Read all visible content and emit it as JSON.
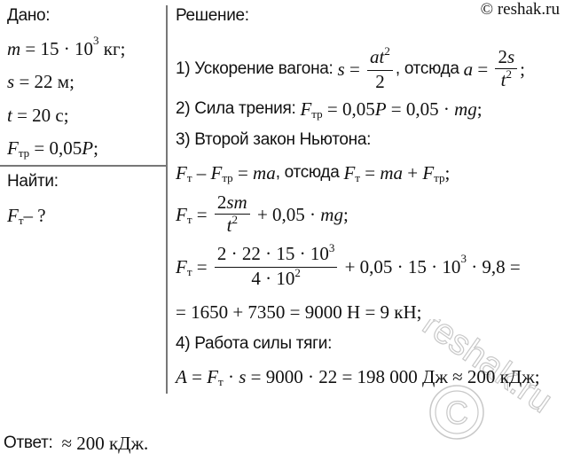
{
  "copyright": "© reshak.ru",
  "watermark": "reshak.ru",
  "given": {
    "title": "Дано:",
    "lines": [
      [
        {
          "v": "m"
        },
        " = 15 · 10",
        {
          "sup": "3"
        },
        " кг;"
      ],
      [
        {
          "v": "s"
        },
        " = 22 м;"
      ],
      [
        {
          "v": "t"
        },
        " = 20 с;"
      ],
      [
        {
          "v": "F"
        },
        {
          "sub": "тр"
        },
        " = 0,05",
        {
          "v": "P"
        },
        ";"
      ]
    ]
  },
  "find": {
    "title": "Найти:",
    "line": [
      {
        "v": "F"
      },
      {
        "sub": "т"
      },
      "– ?"
    ]
  },
  "solution": {
    "title": "Решение:",
    "lines": [
      [
        {
          "t": "1) Ускорение вагона: "
        },
        {
          "v": "s"
        },
        " = ",
        {
          "frac": [
            [
              {
                "v": "at"
              },
              {
                "sup": "2"
              }
            ],
            [
              "2"
            ]
          ]
        },
        {
          "t": ", отсюда "
        },
        {
          "v": "a"
        },
        " = ",
        {
          "frac": [
            [
              "2",
              {
                "v": "s"
              }
            ],
            [
              {
                "v": "t"
              },
              {
                "sup": "2"
              }
            ]
          ]
        },
        ";"
      ],
      [
        {
          "t": "2) Сила трения: "
        },
        {
          "v": "F"
        },
        {
          "sub": "тр"
        },
        " = 0,05",
        {
          "v": "P"
        },
        " = 0,05 · ",
        {
          "v": "mg"
        },
        ";"
      ],
      [
        {
          "t": "3) Второй закон Ньютона:"
        }
      ],
      [
        {
          "v": "F"
        },
        {
          "sub": "т"
        },
        " – ",
        {
          "v": "F"
        },
        {
          "sub": "тр"
        },
        " = ",
        {
          "v": "ma"
        },
        {
          "t": ", отсюда "
        },
        {
          "v": "F"
        },
        {
          "sub": "т"
        },
        " = ",
        {
          "v": "ma"
        },
        " + ",
        {
          "v": "F"
        },
        {
          "sub": "тр"
        },
        ";"
      ],
      [
        {
          "v": "F"
        },
        {
          "sub": "т"
        },
        " = ",
        {
          "frac": [
            [
              "2",
              {
                "v": "sm"
              }
            ],
            [
              {
                "v": "t"
              },
              {
                "sup": "2"
              }
            ]
          ]
        },
        " + 0,05 · ",
        {
          "v": "mg"
        },
        ";"
      ],
      [
        {
          "v": "F"
        },
        {
          "sub": "т"
        },
        " = ",
        {
          "frac": [
            [
              "2 · 22 · 15 · 10",
              {
                "sup": "3"
              }
            ],
            [
              "4 · 10",
              {
                "sup": "2"
              }
            ]
          ]
        },
        " + 0,05 · 15 · 10",
        {
          "sup": "3"
        },
        " · 9,8 ="
      ],
      [
        "= 1650 + 7350 = 9000 Н = 9 кН;"
      ],
      [
        {
          "t": "4) Работа силы тяги:"
        }
      ],
      [
        {
          "v": "A"
        },
        " = ",
        {
          "v": "F"
        },
        {
          "sub": "т"
        },
        " · ",
        {
          "v": "s"
        },
        " = 9000 · 22 = 198 000 Дж ≈ 200 кДж;"
      ]
    ]
  },
  "answer": [
    {
      "t": "Ответ:  "
    },
    "≈ 200 кДж."
  ]
}
